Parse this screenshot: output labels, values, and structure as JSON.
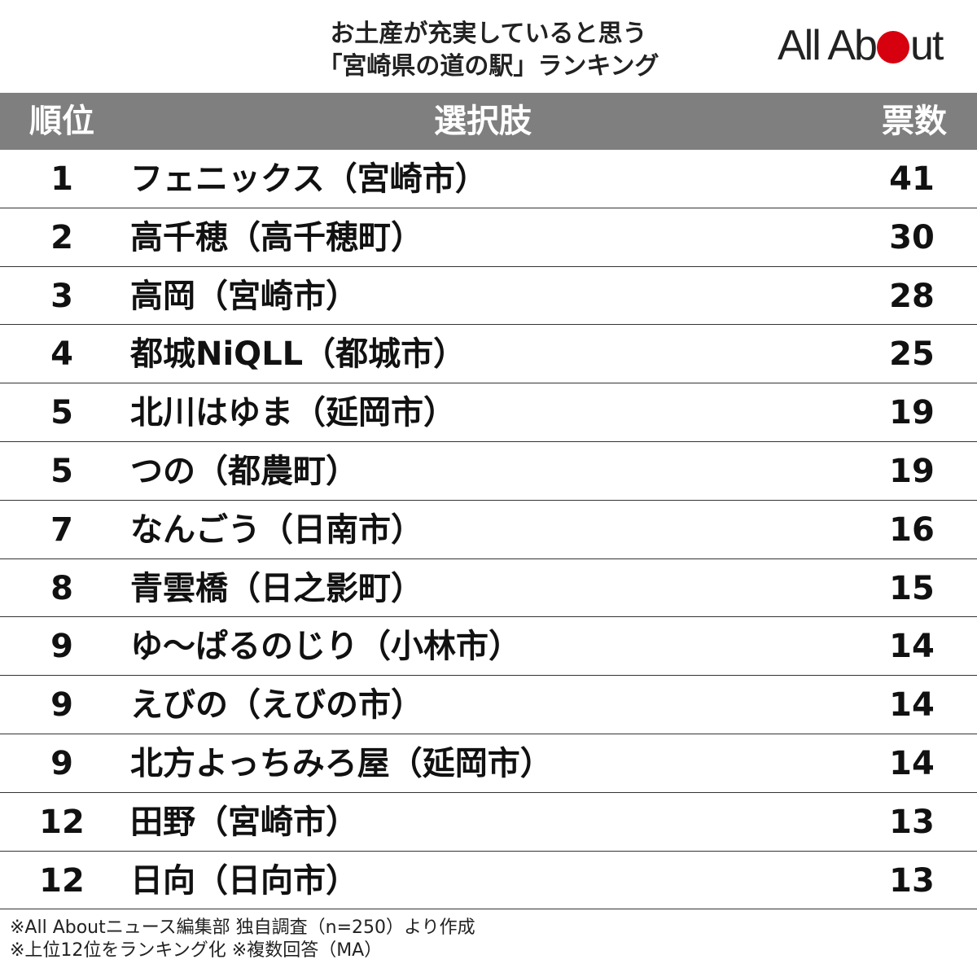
{
  "title_lines": [
    "お土産が充実していると思う",
    "「宮崎県の道の駅」ランキング"
  ],
  "logo": {
    "left": "All Ab",
    "right": "ut",
    "dot_color": "#d7000f"
  },
  "headers": {
    "rank": "順位",
    "choice": "選択肢",
    "votes": "票数"
  },
  "chart_data": {
    "type": "table",
    "columns": [
      "順位",
      "選択肢",
      "票数"
    ],
    "rows": [
      {
        "rank": "1",
        "name": "フェニックス（宮崎市）",
        "votes": "41"
      },
      {
        "rank": "2",
        "name": "高千穂（高千穂町）",
        "votes": "30"
      },
      {
        "rank": "3",
        "name": "高岡（宮崎市）",
        "votes": "28"
      },
      {
        "rank": "4",
        "name": "都城NiQLL（都城市）",
        "votes": "25"
      },
      {
        "rank": "5",
        "name": "北川はゆま（延岡市）",
        "votes": "19"
      },
      {
        "rank": "5",
        "name": "つの（都農町）",
        "votes": "19"
      },
      {
        "rank": "7",
        "name": "なんごう（日南市）",
        "votes": "16"
      },
      {
        "rank": "8",
        "name": "青雲橋（日之影町）",
        "votes": "15"
      },
      {
        "rank": "9",
        "name": "ゆ〜ぱるのじり（小林市）",
        "votes": "14"
      },
      {
        "rank": "9",
        "name": "えびの（えびの市）",
        "votes": "14"
      },
      {
        "rank": "9",
        "name": "北方よっちみろ屋（延岡市）",
        "votes": "14"
      },
      {
        "rank": "12",
        "name": "田野（宮崎市）",
        "votes": "13"
      },
      {
        "rank": "12",
        "name": "日向（日向市）",
        "votes": "13"
      }
    ]
  },
  "notes": [
    "※All Aboutニュース編集部 独自調査（n=250）より作成",
    "※上位12位をランキング化 ※複数回答（MA）"
  ],
  "colors": {
    "header_bg": "#7f7f7f",
    "accent": "#d7000f"
  }
}
